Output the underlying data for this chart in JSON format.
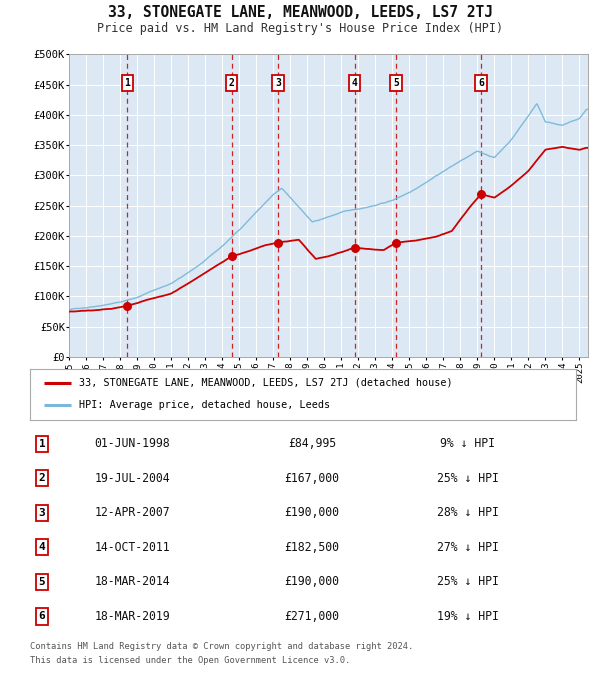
{
  "title": "33, STONEGATE LANE, MEANWOOD, LEEDS, LS7 2TJ",
  "subtitle": "Price paid vs. HM Land Registry's House Price Index (HPI)",
  "title_fontsize": 10.5,
  "subtitle_fontsize": 8.5,
  "background_color": "#ffffff",
  "plot_bg_color": "#dce9f5",
  "ylim": [
    0,
    500000
  ],
  "yticks": [
    0,
    50000,
    100000,
    150000,
    200000,
    250000,
    300000,
    350000,
    400000,
    450000,
    500000
  ],
  "ytick_labels": [
    "£0",
    "£50K",
    "£100K",
    "£150K",
    "£200K",
    "£250K",
    "£300K",
    "£350K",
    "£400K",
    "£450K",
    "£500K"
  ],
  "xmin": 1995.0,
  "xmax": 2025.5,
  "xticks": [
    1995,
    1996,
    1997,
    1998,
    1999,
    2000,
    2001,
    2002,
    2003,
    2004,
    2005,
    2006,
    2007,
    2008,
    2009,
    2010,
    2011,
    2012,
    2013,
    2014,
    2015,
    2016,
    2017,
    2018,
    2019,
    2020,
    2021,
    2022,
    2023,
    2024,
    2025
  ],
  "hpi_color": "#7ab8d9",
  "price_color": "#cc0000",
  "marker_color": "#cc0000",
  "vline_color": "#cc0000",
  "grid_color": "#ffffff",
  "transactions": [
    {
      "num": 1,
      "date_str": "01-JUN-1998",
      "year": 1998.42,
      "price": 84995,
      "pct": "9% ↓ HPI"
    },
    {
      "num": 2,
      "date_str": "19-JUL-2004",
      "year": 2004.55,
      "price": 167000,
      "pct": "25% ↓ HPI"
    },
    {
      "num": 3,
      "date_str": "12-APR-2007",
      "year": 2007.28,
      "price": 190000,
      "pct": "28% ↓ HPI"
    },
    {
      "num": 4,
      "date_str": "14-OCT-2011",
      "year": 2011.79,
      "price": 182500,
      "pct": "27% ↓ HPI"
    },
    {
      "num": 5,
      "date_str": "18-MAR-2014",
      "year": 2014.21,
      "price": 190000,
      "pct": "25% ↓ HPI"
    },
    {
      "num": 6,
      "date_str": "18-MAR-2019",
      "year": 2019.21,
      "price": 271000,
      "pct": "19% ↓ HPI"
    }
  ],
  "legend_line1": "33, STONEGATE LANE, MEANWOOD, LEEDS, LS7 2TJ (detached house)",
  "legend_line2": "HPI: Average price, detached house, Leeds",
  "footer1": "Contains HM Land Registry data © Crown copyright and database right 2024.",
  "footer2": "This data is licensed under the Open Government Licence v3.0.",
  "hpi_knots_x": [
    1995.0,
    1996.0,
    1997.0,
    1998.0,
    1999.0,
    2000.0,
    2001.0,
    2002.0,
    2003.0,
    2004.0,
    2005.0,
    2006.0,
    2007.0,
    2007.5,
    2008.5,
    2009.3,
    2010.0,
    2011.0,
    2012.0,
    2013.0,
    2014.0,
    2015.0,
    2016.0,
    2017.0,
    2018.0,
    2019.0,
    2020.0,
    2021.0,
    2022.0,
    2022.5,
    2023.0,
    2024.0,
    2025.0,
    2025.4
  ],
  "hpi_knots_y": [
    78000,
    82000,
    87000,
    92000,
    100000,
    112000,
    123000,
    140000,
    160000,
    183000,
    210000,
    240000,
    268000,
    278000,
    248000,
    222000,
    228000,
    238000,
    243000,
    250000,
    258000,
    272000,
    290000,
    308000,
    325000,
    340000,
    330000,
    360000,
    400000,
    420000,
    390000,
    385000,
    395000,
    410000
  ],
  "price_knots_x": [
    1995.0,
    1997.5,
    1998.42,
    2001.0,
    2004.55,
    2005.5,
    2006.5,
    2007.28,
    2008.5,
    2009.5,
    2010.5,
    2011.79,
    2012.5,
    2013.5,
    2014.21,
    2015.5,
    2016.5,
    2017.5,
    2018.5,
    2019.21,
    2020.0,
    2021.0,
    2022.0,
    2023.0,
    2024.0,
    2025.0,
    2025.4
  ],
  "price_knots_y": [
    75000,
    80000,
    84995,
    105000,
    167000,
    175000,
    185000,
    190000,
    195000,
    163000,
    170000,
    182500,
    180000,
    178000,
    190000,
    195000,
    200000,
    210000,
    248000,
    271000,
    265000,
    285000,
    310000,
    345000,
    350000,
    345000,
    348000
  ]
}
